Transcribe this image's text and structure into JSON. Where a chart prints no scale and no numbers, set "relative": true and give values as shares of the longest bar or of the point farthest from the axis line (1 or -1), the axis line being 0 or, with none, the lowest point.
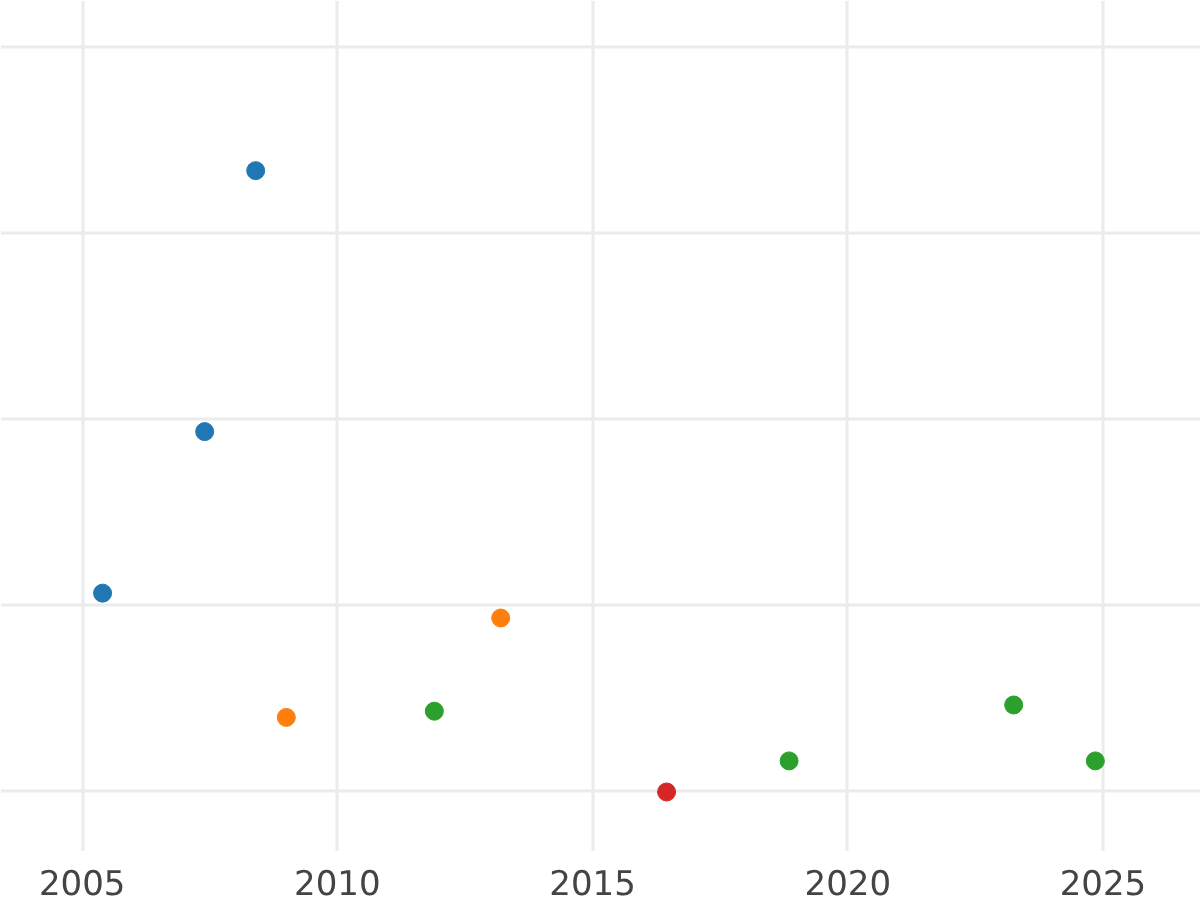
{
  "chart_data": {
    "type": "scatter",
    "relative": true,
    "marker": "circle",
    "grid": true,
    "xlim": [
      2003.41,
      2026.92
    ],
    "xticks": [
      2005,
      2010,
      2015,
      2020,
      2025
    ],
    "series": [
      {
        "color": "#1f77b4",
        "x": [
          2008.4,
          2007.4,
          2005.4
        ],
        "values": [
          1,
          0.58,
          0.32
        ]
      },
      {
        "color": "#ff7f0e",
        "x": [
          2009.0,
          2013.2
        ],
        "values": [
          0.12,
          0.28
        ]
      },
      {
        "color": "#2ca02c",
        "x": [
          2011.9,
          2018.85,
          2023.25,
          2024.85
        ],
        "values": [
          0.13,
          0.05,
          0.14,
          0.05
        ]
      },
      {
        "color": "#d62728",
        "x": [
          2016.45
        ],
        "values": [
          0
        ]
      }
    ]
  }
}
